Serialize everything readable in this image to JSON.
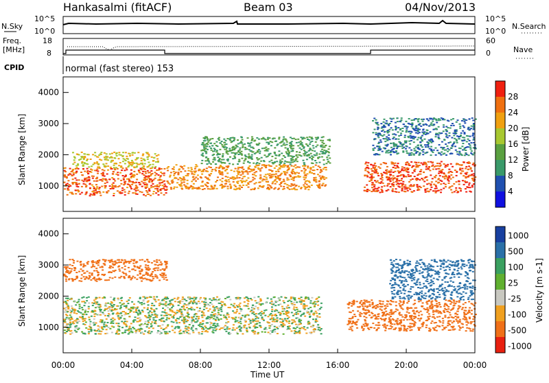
{
  "header": {
    "station": "Hankasalmi (fitACF)",
    "beam": "Beam 03",
    "date": "04/Nov/2013"
  },
  "noise_panel": {
    "left_label": "N.Sky",
    "right_label": "N.Search",
    "left_ticks": [
      "10^5",
      "10^0"
    ],
    "right_ticks": [
      "10^5",
      "10^0"
    ]
  },
  "freq_panel": {
    "left_label_1": "Freq.",
    "left_label_2": "[MHz]",
    "right_label": "Nave",
    "left_ticks": [
      "18",
      "8"
    ],
    "right_ticks": [
      "60",
      "0"
    ]
  },
  "cpid": {
    "label": "CPID",
    "mode": "normal (fast stereo) 153"
  },
  "power_panel": {
    "ylabel": "Slant Range [km]",
    "yticks": [
      "1000",
      "2000",
      "3000",
      "4000"
    ],
    "colorbar_label": "Power [dB]",
    "colorbar_ticks": [
      "4",
      "8",
      "12",
      "16",
      "20",
      "24",
      "28"
    ]
  },
  "velocity_panel": {
    "ylabel": "Slant Range [km]",
    "yticks": [
      "1000",
      "2000",
      "3000",
      "4000"
    ],
    "colorbar_label": "Velocity [m s-1]",
    "colorbar_ticks": [
      "1000",
      "500",
      "100",
      "25",
      "-25",
      "-100",
      "-500",
      "-1000"
    ]
  },
  "xaxis": {
    "label": "Time UT",
    "ticks": [
      "00:00",
      "04:00",
      "08:00",
      "12:00",
      "16:00",
      "20:00",
      "00:00"
    ]
  },
  "colors": {
    "power": [
      "#1010e0",
      "#2050b0",
      "#3a9a6a",
      "#5aa040",
      "#a8c830",
      "#f0a010",
      "#f07010",
      "#f02010"
    ],
    "velocity": [
      "#1840a0",
      "#2a70a8",
      "#3aa060",
      "#60b030",
      "#c8c8c0",
      "#f0a020",
      "#f07018",
      "#e82010"
    ]
  },
  "chart_data": [
    {
      "type": "heatmap",
      "title": "Power",
      "xlabel": "Time UT",
      "ylabel": "Slant Range [km]",
      "xlim": [
        "00:00",
        "24:00"
      ],
      "ylim": [
        180,
        4500
      ],
      "colorbar": {
        "label": "Power [dB]",
        "range": [
          0,
          32
        ],
        "ticks": [
          4,
          8,
          12,
          16,
          20,
          24,
          28
        ]
      },
      "regions": [
        {
          "time_start": 0.0,
          "time_end": 6.0,
          "range_min": 700,
          "range_max": 1600,
          "value_db": 27
        },
        {
          "time_start": 0.5,
          "time_end": 5.5,
          "range_min": 1600,
          "range_max": 2100,
          "value_db": 20
        },
        {
          "time_start": 6.0,
          "time_end": 15.3,
          "range_min": 900,
          "range_max": 1700,
          "value_db": 24
        },
        {
          "time_start": 8.0,
          "time_end": 15.5,
          "range_min": 1700,
          "range_max": 2600,
          "value_db": 12
        },
        {
          "time_start": 17.5,
          "time_end": 24.0,
          "range_min": 800,
          "range_max": 1800,
          "value_db": 28
        },
        {
          "time_start": 18.0,
          "time_end": 24.0,
          "range_min": 2000,
          "range_max": 3200,
          "value_db": 8
        }
      ]
    },
    {
      "type": "heatmap",
      "title": "Velocity",
      "xlabel": "Time UT",
      "ylabel": "Slant Range [km]",
      "xlim": [
        "00:00",
        "24:00"
      ],
      "ylim": [
        180,
        4500
      ],
      "colorbar": {
        "label": "Velocity [m s-1]",
        "levels": [
          1000,
          500,
          100,
          25,
          -25,
          -100,
          -500,
          -1000
        ]
      },
      "regions": [
        {
          "time_start": 0.0,
          "time_end": 15.0,
          "range_min": 800,
          "range_max": 2000,
          "value_ms": 0
        },
        {
          "time_start": 0.0,
          "time_end": 6.0,
          "range_min": 2500,
          "range_max": 3200,
          "value_ms": -300
        },
        {
          "time_start": 16.5,
          "time_end": 24.0,
          "range_min": 900,
          "range_max": 1900,
          "value_ms": -400
        },
        {
          "time_start": 19.0,
          "time_end": 24.0,
          "range_min": 1900,
          "range_max": 3200,
          "value_ms": 200
        }
      ]
    }
  ]
}
